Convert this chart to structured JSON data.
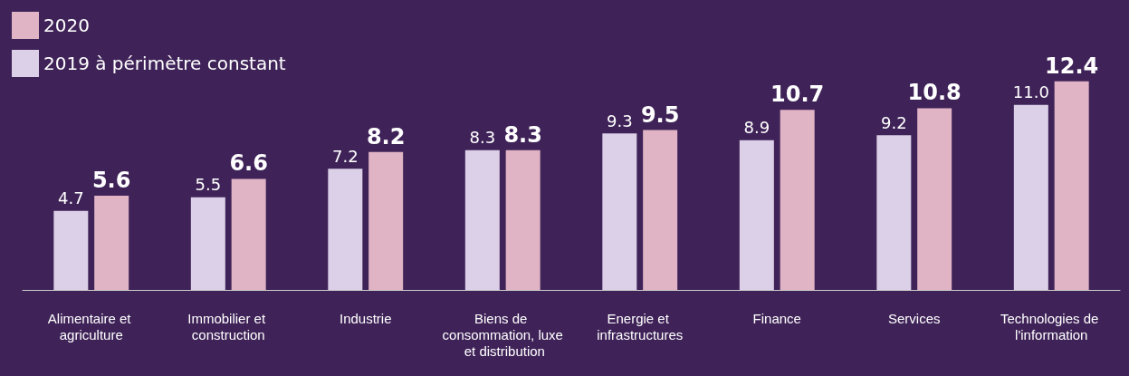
{
  "chart_data": {
    "type": "bar",
    "categories": [
      "Alimentaire et agriculture",
      "Immobilier et construction",
      "Industrie",
      "Biens de consommation, luxe et distribution",
      "Energie et infrastructures",
      "Finance",
      "Services",
      "Technologies de l'information"
    ],
    "series": [
      {
        "name": "2019 à périmètre constant",
        "color": "#dcd0e8",
        "values": [
          4.7,
          5.5,
          7.2,
          8.3,
          9.3,
          8.9,
          9.2,
          11.0
        ],
        "value_labels": [
          "4.7",
          "5.5",
          "7.2",
          "8.3",
          "9.3",
          "8.9",
          "9.2",
          "11.0"
        ]
      },
      {
        "name": "2020",
        "color": "#e0b4c4",
        "values": [
          5.6,
          6.6,
          8.2,
          8.3,
          9.5,
          10.7,
          10.8,
          12.4
        ],
        "value_labels": [
          "5.6",
          "6.6",
          "8.2",
          "8.3",
          "9.5",
          "10.7",
          "10.8",
          "12.4"
        ]
      }
    ],
    "tick_labels": "x",
    "legend": "top left",
    "grid": false
  }
}
